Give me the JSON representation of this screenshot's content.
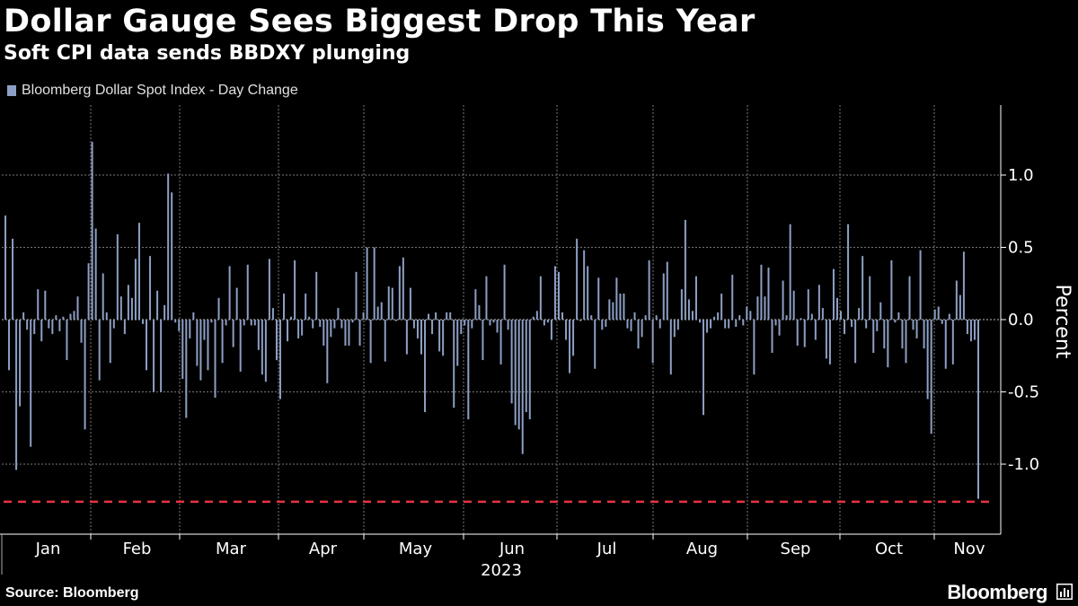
{
  "colors": {
    "background": "#000000",
    "bar": "#8d9fc4",
    "grid": "#777777",
    "text": "#ffffff",
    "reference_line": "#e8333f"
  },
  "footer": {
    "source": "Source: Bloomberg",
    "brand": "Bloomberg"
  },
  "chart_data": {
    "type": "bar",
    "title": "Dollar Gauge Sees Biggest Drop This Year",
    "subtitle": "Soft CPI data sends BBDXY plunging",
    "legend": [
      "Bloomberg Dollar Spot Index - Day Change"
    ],
    "xlabel": "2023",
    "ylabel": "Percent",
    "ylim": [
      -1.4,
      1.4
    ],
    "yticks": [
      1.0,
      0.5,
      0.0,
      -0.5,
      -1.0
    ],
    "ytick_labels": [
      "1.0",
      "0.5",
      "0.0",
      "-0.5",
      "-1.0"
    ],
    "months": [
      "Jan",
      "Feb",
      "Mar",
      "Apr",
      "May",
      "Jun",
      "Jul",
      "Aug",
      "Sep",
      "Oct",
      "Nov"
    ],
    "reference_line": {
      "value": -1.26,
      "style": "dashed",
      "label": ""
    },
    "grid": true,
    "series": [
      {
        "name": "Bloomberg Dollar Spot Index - Day Change",
        "values": [
          0.72,
          -0.35,
          0.56,
          -1.04,
          -0.6,
          0.05,
          -0.07,
          -0.88,
          -0.1,
          0.21,
          -0.15,
          0.2,
          -0.06,
          -0.1,
          0.03,
          -0.08,
          0.02,
          -0.28,
          0.04,
          0.06,
          0.16,
          -0.16,
          -0.76,
          0.39,
          1.23,
          0.63,
          -0.42,
          0.32,
          0.05,
          -0.3,
          -0.06,
          0.59,
          0.16,
          -0.1,
          0.24,
          0.15,
          0.42,
          0.67,
          -0.03,
          -0.35,
          0.44,
          -0.5,
          0.2,
          -0.5,
          0.1,
          1.01,
          0.88,
          -0.02,
          -0.08,
          -0.41,
          -0.68,
          -0.13,
          0.05,
          -0.32,
          -0.42,
          -0.14,
          -0.35,
          -0.02,
          -0.54,
          0.15,
          -0.3,
          -0.04,
          0.37,
          -0.19,
          0.22,
          -0.36,
          -0.04,
          0.38,
          -0.04,
          -0.04,
          -0.21,
          -0.38,
          -0.43,
          0.42,
          0.08,
          -0.28,
          -0.55,
          0.18,
          -0.15,
          0.02,
          0.41,
          -0.13,
          -0.11,
          0.18,
          0.02,
          -0.06,
          0.33,
          -0.05,
          -0.18,
          -0.44,
          -0.12,
          -0.06,
          0.08,
          -0.06,
          -0.18,
          -0.18,
          -0.02,
          0.33,
          -0.18,
          0.05,
          0.5,
          -0.3,
          0.5,
          0.09,
          0.12,
          -0.29,
          0.23,
          0.22,
          -0.01,
          0.37,
          0.43,
          -0.24,
          0.22,
          -0.06,
          -0.13,
          -0.24,
          -0.64,
          0.04,
          -0.1,
          0.05,
          -0.22,
          -0.25,
          0.05,
          0.05,
          -0.61,
          -0.32,
          -0.1,
          -0.04,
          -0.69,
          -0.06,
          0.21,
          0.1,
          -0.28,
          0.3,
          -0.04,
          -0.02,
          -0.09,
          -0.31,
          0.38,
          -0.07,
          -0.58,
          -0.73,
          -0.76,
          -0.93,
          -0.64,
          -0.69,
          0.02,
          0.06,
          0.3,
          -0.04,
          -0.02,
          -0.14,
          0.37,
          0.33,
          0.05,
          -0.14,
          -0.37,
          -0.25,
          0.56,
          -0.01,
          0.48,
          0.37,
          0.03,
          -0.34,
          0.29,
          -0.07,
          -0.05,
          0.14,
          0.12,
          0.29,
          0.18,
          0.18,
          -0.06,
          -0.08,
          0.05,
          -0.2,
          -0.12,
          0.03,
          0.41,
          -0.3,
          0.03,
          -0.06,
          0.32,
          0.4,
          -0.38,
          -0.12,
          -0.07,
          0.21,
          0.69,
          0.14,
          0.06,
          0.3,
          -0.02,
          -0.66,
          -0.09,
          -0.06,
          0.02,
          0.05,
          0.18,
          -0.06,
          -0.06,
          0.31,
          -0.05,
          0.03,
          -0.04,
          0.09,
          0.06,
          -0.38,
          0.16,
          0.38,
          0.16,
          0.36,
          -0.23,
          -0.04,
          -0.11,
          0.27,
          0.03,
          0.66,
          0.2,
          -0.18,
          0.01,
          -0.19,
          0.21,
          0.04,
          -0.14,
          0.24,
          0.08,
          -0.27,
          -0.31,
          0.35,
          0.15,
          0.06,
          -0.1,
          0.66,
          -0.05,
          -0.3,
          0.08,
          0.44,
          -0.06,
          0.3,
          -0.23,
          -0.08,
          0.12,
          -0.2,
          -0.33,
          0.41,
          -0.02,
          0.05,
          -0.2,
          -0.3,
          0.3,
          -0.07,
          -0.13,
          0.48,
          -0.2,
          -0.55,
          -0.79,
          0.07,
          0.09,
          -0.03,
          -0.34,
          0.04,
          -0.31,
          0.27,
          0.17,
          0.47,
          -0.1,
          -0.15,
          -0.14,
          -1.24
        ]
      }
    ]
  }
}
